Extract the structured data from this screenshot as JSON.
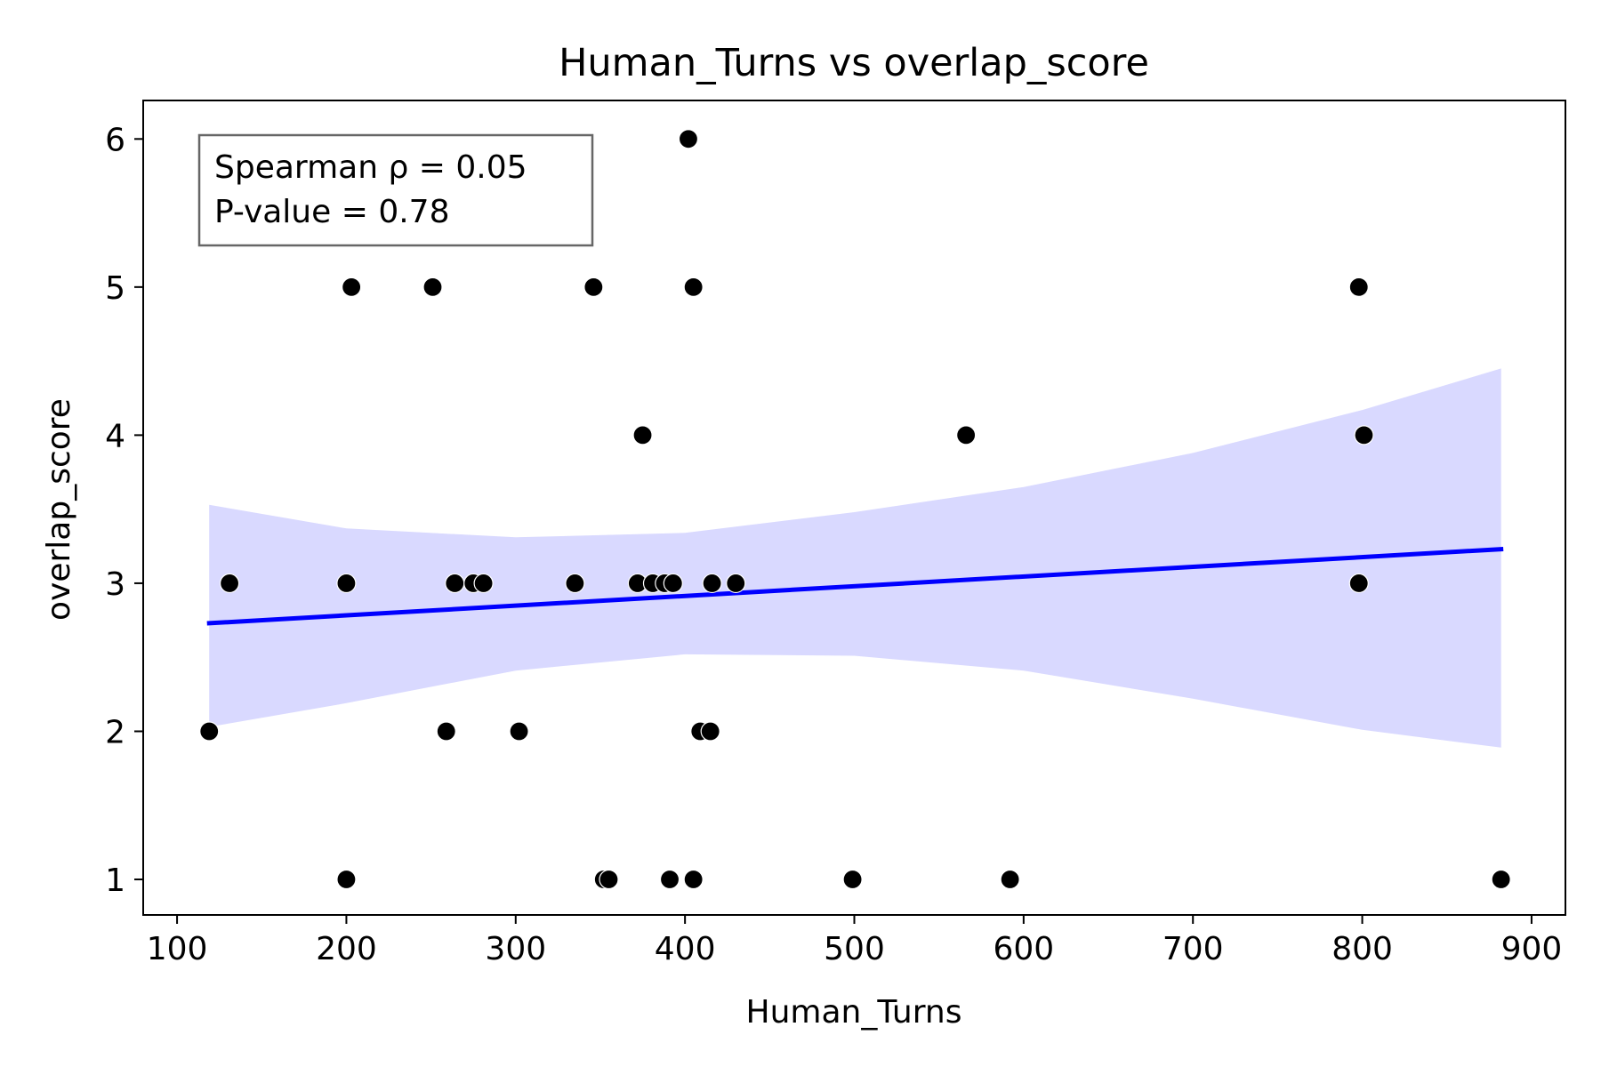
{
  "chart_data": {
    "type": "scatter",
    "title": "Human_Turns vs overlap_score",
    "xlabel": "Human_Turns",
    "ylabel": "overlap_score",
    "xlim": [
      80,
      920
    ],
    "ylim": [
      0.76,
      6.26
    ],
    "xticks": [
      100,
      200,
      300,
      400,
      500,
      600,
      700,
      800,
      900
    ],
    "yticks": [
      1,
      2,
      3,
      4,
      5,
      6
    ],
    "grid": false,
    "series": [
      {
        "type": "scatter",
        "color": "#000000",
        "points": [
          {
            "x": 119,
            "y": 2
          },
          {
            "x": 131,
            "y": 3
          },
          {
            "x": 200,
            "y": 3
          },
          {
            "x": 200,
            "y": 1
          },
          {
            "x": 203,
            "y": 5
          },
          {
            "x": 251,
            "y": 5
          },
          {
            "x": 259,
            "y": 2
          },
          {
            "x": 264,
            "y": 3
          },
          {
            "x": 275,
            "y": 3
          },
          {
            "x": 281,
            "y": 3
          },
          {
            "x": 302,
            "y": 2
          },
          {
            "x": 335,
            "y": 3
          },
          {
            "x": 346,
            "y": 5
          },
          {
            "x": 352,
            "y": 1
          },
          {
            "x": 355,
            "y": 1
          },
          {
            "x": 372,
            "y": 3
          },
          {
            "x": 375,
            "y": 4
          },
          {
            "x": 381,
            "y": 3
          },
          {
            "x": 388,
            "y": 3
          },
          {
            "x": 391,
            "y": 1
          },
          {
            "x": 393,
            "y": 3
          },
          {
            "x": 402,
            "y": 6
          },
          {
            "x": 405,
            "y": 5
          },
          {
            "x": 405,
            "y": 1
          },
          {
            "x": 409,
            "y": 2
          },
          {
            "x": 415,
            "y": 2
          },
          {
            "x": 416,
            "y": 3
          },
          {
            "x": 430,
            "y": 3
          },
          {
            "x": 499,
            "y": 1
          },
          {
            "x": 566,
            "y": 4
          },
          {
            "x": 592,
            "y": 1
          },
          {
            "x": 798,
            "y": 5
          },
          {
            "x": 798,
            "y": 3
          },
          {
            "x": 801,
            "y": 4
          },
          {
            "x": 882,
            "y": 1
          }
        ]
      },
      {
        "type": "line",
        "color": "#0000ff",
        "x": [
          119,
          882
        ],
        "y": [
          2.73,
          3.23
        ]
      },
      {
        "type": "area",
        "color": "#d9d9ff",
        "x": [
          119,
          200,
          300,
          400,
          500,
          600,
          700,
          800,
          882
        ],
        "upper": [
          3.53,
          3.37,
          3.31,
          3.34,
          3.48,
          3.65,
          3.88,
          4.17,
          4.45
        ],
        "lower": [
          2.03,
          2.19,
          2.41,
          2.52,
          2.51,
          2.41,
          2.22,
          2.01,
          1.89
        ]
      }
    ],
    "annotation": {
      "lines": [
        "Spearman ρ = 0.05",
        "P-value = 0.78"
      ],
      "location": "top-left"
    }
  }
}
